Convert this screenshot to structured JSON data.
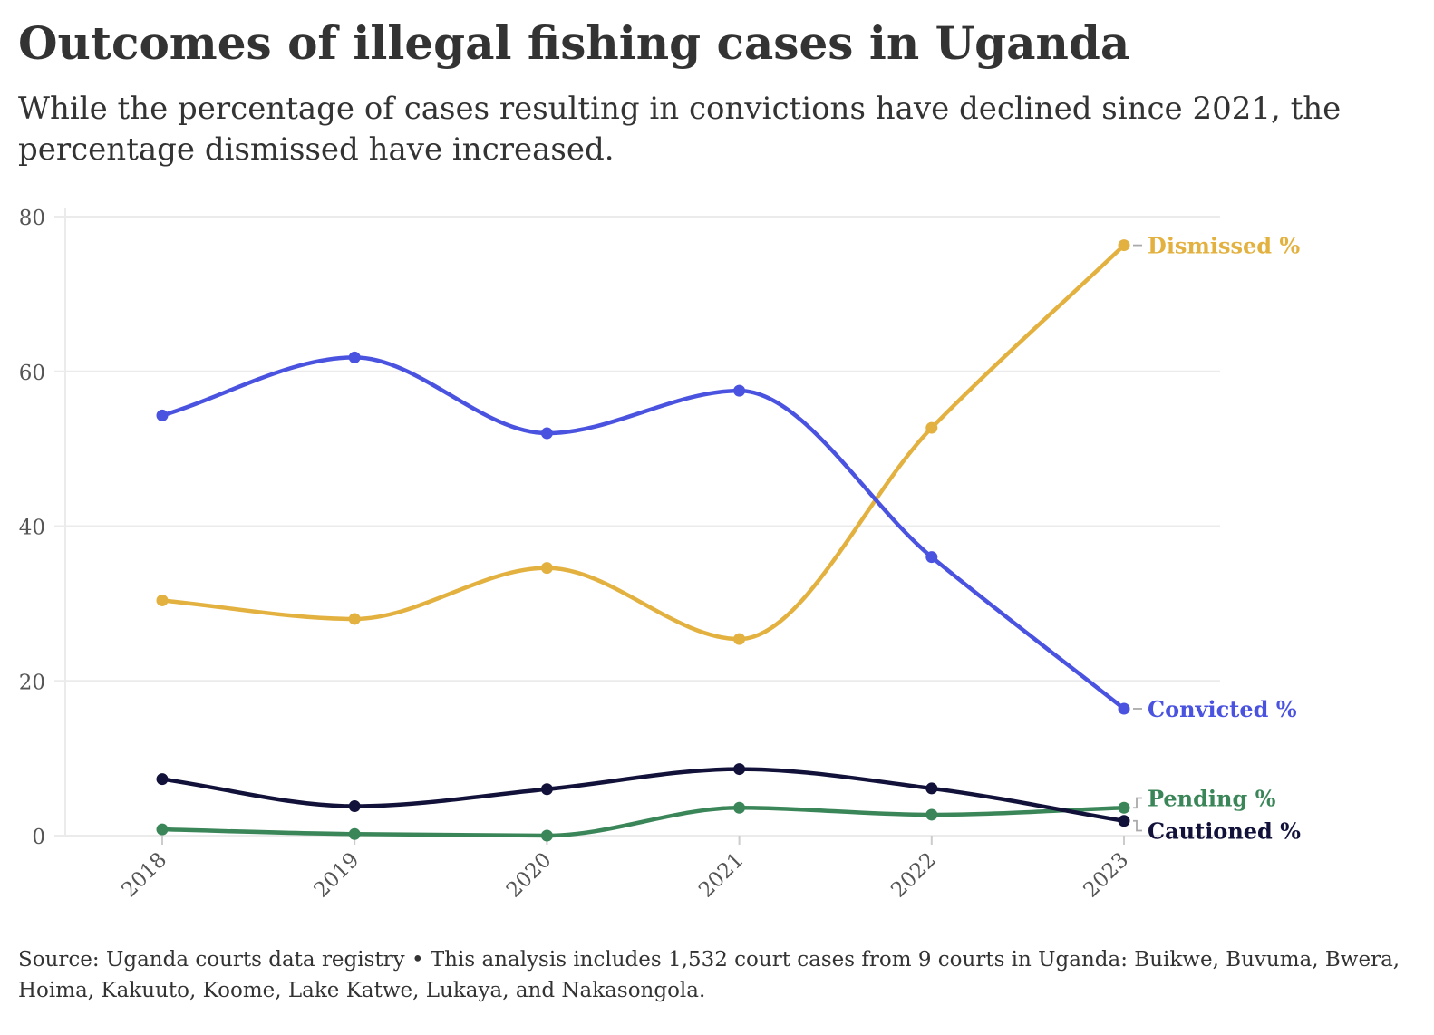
{
  "title": "Outcomes of illegal fishing cases in Uganda",
  "subtitle": "While the percentage of cases resulting in convictions have declined since 2021, the percentage dismissed have increased.",
  "source": "Source: Uganda courts data registry • This analysis includes 1,532 court cases from 9 courts in Uganda: Buikwe, Buvuma, Bwera, Hoima, Kakuuto, Koome, Lake Katwe, Lukaya, and Nakasongola.",
  "chart_data": {
    "type": "line",
    "x": [
      "2018",
      "2019",
      "2020",
      "2021",
      "2022",
      "2023"
    ],
    "ylim": [
      0,
      80
    ],
    "yticks": [
      0,
      20,
      40,
      60,
      80
    ],
    "grid": "horizontal",
    "legend": "direct labels at right end of lines",
    "xlabel": "",
    "ylabel": "",
    "series": [
      {
        "name": "Dismissed %",
        "color": "#e3b13f",
        "values": [
          30.4,
          28.0,
          34.6,
          25.4,
          52.7,
          76.3
        ]
      },
      {
        "name": "Convicted %",
        "color": "#4a52e0",
        "values": [
          54.3,
          61.8,
          52.0,
          57.5,
          36.0,
          16.4
        ]
      },
      {
        "name": "Pending %",
        "color": "#3a8659",
        "values": [
          0.8,
          0.2,
          0.0,
          3.6,
          2.7,
          3.6
        ]
      },
      {
        "name": "Cautioned %",
        "color": "#11113a",
        "values": [
          7.3,
          3.8,
          6.0,
          8.6,
          6.1,
          1.9
        ]
      }
    ]
  }
}
